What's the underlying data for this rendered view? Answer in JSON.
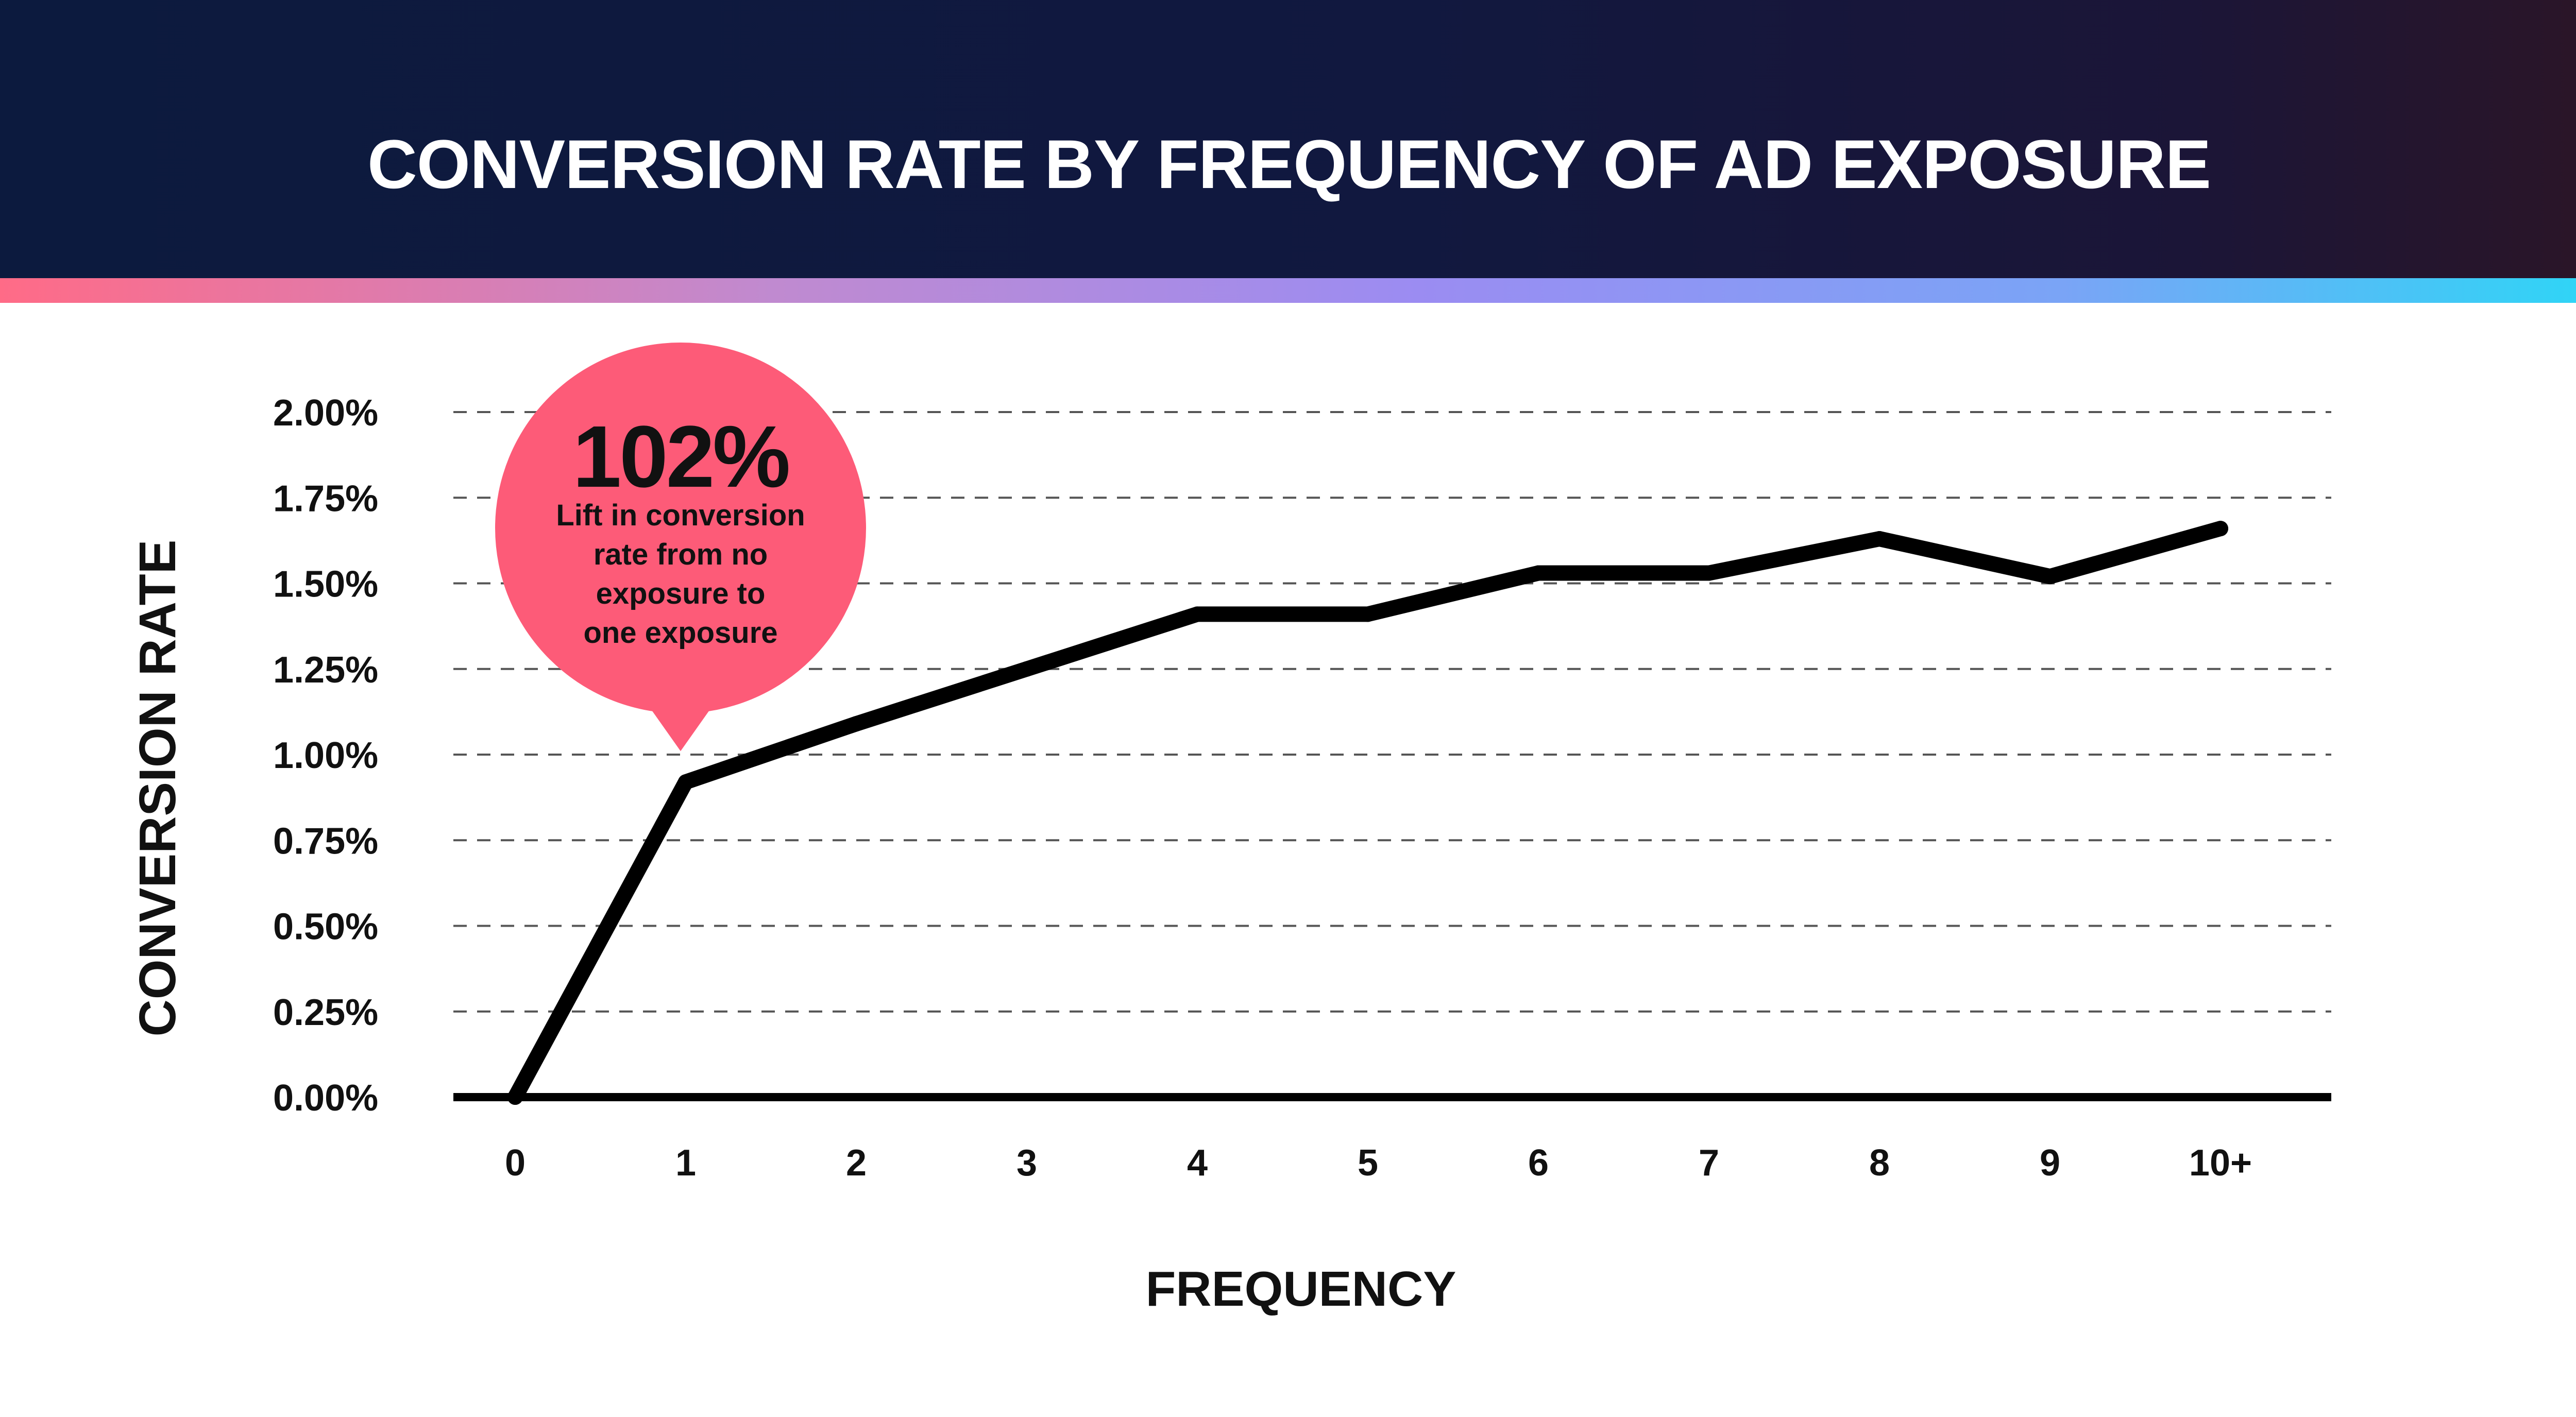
{
  "header": {
    "title": "CONVERSION RATE BY FREQUENCY OF AD EXPOSURE"
  },
  "colors": {
    "line": "#000000",
    "grid": "#555555",
    "bubble": "#fd5b78"
  },
  "chart_data": {
    "type": "line",
    "title": "CONVERSION RATE BY FREQUENCY OF AD EXPOSURE",
    "xlabel": "FREQUENCY",
    "ylabel": "CONVERSION RATE",
    "categories": [
      "0",
      "1",
      "2",
      "3",
      "4",
      "5",
      "6",
      "7",
      "8",
      "9",
      "10+"
    ],
    "y_ticks": [
      "0.00%",
      "0.25%",
      "0.50%",
      "0.75%",
      "1.00%",
      "1.25%",
      "1.50%",
      "1.75%",
      "2.00%"
    ],
    "ylim": [
      0,
      2.0
    ],
    "grid": "horizontal dashed",
    "series": [
      {
        "values": [
          0.0,
          0.92,
          1.09,
          1.25,
          1.41,
          1.41,
          1.53,
          1.53,
          1.63,
          1.52,
          1.66
        ]
      }
    ],
    "annotation": {
      "category": "1",
      "headline": "102%",
      "lines": [
        "Lift in conversion",
        "rate from no",
        "exposure to",
        "one exposure"
      ]
    }
  }
}
